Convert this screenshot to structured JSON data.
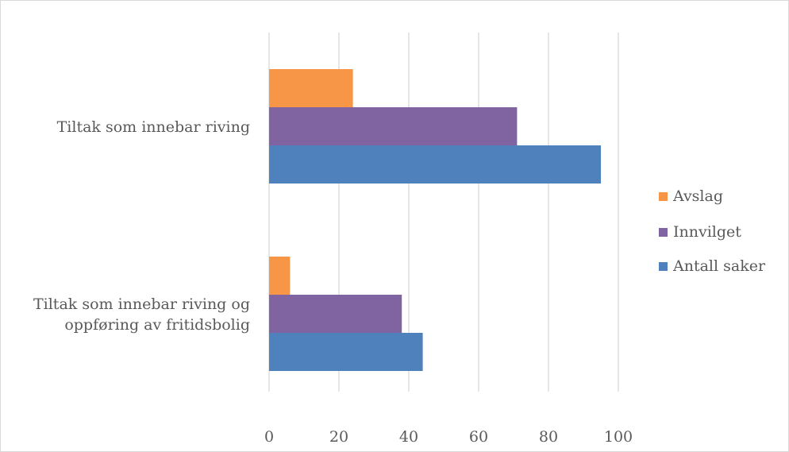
{
  "chart_data": {
    "type": "bar",
    "orientation": "horizontal",
    "categories": [
      [
        "Tiltak som innebar riving"
      ],
      [
        "Tiltak som innebar riving og",
        "oppføring av fritidsbolig"
      ]
    ],
    "series": [
      {
        "name": "Avslag",
        "color": "#F79646",
        "values": [
          24,
          6
        ]
      },
      {
        "name": "Innvilget",
        "color": "#8064A2",
        "values": [
          71,
          38
        ]
      },
      {
        "name": "Antall saker",
        "color": "#4F81BD",
        "values": [
          95,
          44
        ]
      }
    ],
    "xlim": [
      0,
      100
    ],
    "xticks": [
      "0",
      "20",
      "40",
      "60",
      "80",
      "100"
    ],
    "grid": true,
    "legend_position": "right",
    "title": "",
    "xlabel": "",
    "ylabel": ""
  }
}
